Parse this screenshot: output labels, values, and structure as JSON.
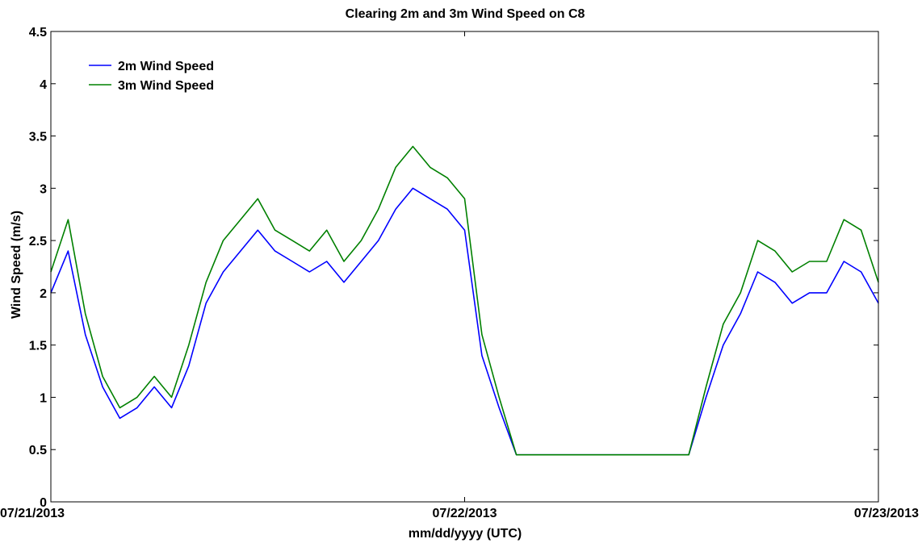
{
  "chart_data": {
    "type": "line",
    "title": "Clearing 2m and 3m Wind Speed on C8",
    "xlabel": "mm/dd/yyyy (UTC)",
    "ylabel": "Wind Speed (m/s)",
    "x_range": [
      "07/21/2013",
      "07/23/2013"
    ],
    "ylim": [
      0,
      4.5
    ],
    "x_ticks": [
      "07/21/2013",
      "07/22/2013",
      "07/23/2013"
    ],
    "y_ticks": [
      "0",
      "0.5",
      "1",
      "1.5",
      "2",
      "2.5",
      "3",
      "3.5",
      "4",
      "4.5"
    ],
    "y_tick_values": [
      0,
      0.5,
      1,
      1.5,
      2,
      2.5,
      3,
      3.5,
      4,
      4.5
    ],
    "grid": false,
    "legend_position": "top-left",
    "series": [
      {
        "name": "2m Wind Speed",
        "color": "#0000ff",
        "x": [
          "07/21/2013 00:00",
          "07/21/2013 01:00",
          "07/21/2013 02:00",
          "07/21/2013 03:00",
          "07/21/2013 04:00",
          "07/21/2013 05:00",
          "07/21/2013 06:00",
          "07/21/2013 07:00",
          "07/21/2013 08:00",
          "07/21/2013 09:00",
          "07/21/2013 10:00",
          "07/21/2013 11:00",
          "07/21/2013 12:00",
          "07/21/2013 13:00",
          "07/21/2013 14:00",
          "07/21/2013 15:00",
          "07/21/2013 16:00",
          "07/21/2013 17:00",
          "07/21/2013 18:00",
          "07/21/2013 19:00",
          "07/21/2013 20:00",
          "07/21/2013 21:00",
          "07/21/2013 22:00",
          "07/21/2013 23:00",
          "07/22/2013 00:00",
          "07/22/2013 01:00",
          "07/22/2013 02:00",
          "07/22/2013 03:00",
          "07/22/2013 04:00",
          "07/22/2013 05:00",
          "07/22/2013 06:00",
          "07/22/2013 07:00",
          "07/22/2013 08:00",
          "07/22/2013 09:00",
          "07/22/2013 10:00",
          "07/22/2013 11:00",
          "07/22/2013 12:00",
          "07/22/2013 13:00",
          "07/22/2013 14:00",
          "07/22/2013 15:00",
          "07/22/2013 16:00",
          "07/22/2013 17:00",
          "07/22/2013 18:00",
          "07/22/2013 19:00",
          "07/22/2013 20:00",
          "07/22/2013 21:00",
          "07/22/2013 22:00",
          "07/22/2013 23:00",
          "07/23/2013 00:00"
        ],
        "values": [
          2.0,
          2.4,
          1.6,
          1.1,
          0.8,
          0.9,
          1.1,
          0.9,
          1.3,
          1.9,
          2.2,
          2.4,
          2.6,
          2.4,
          2.3,
          2.2,
          2.3,
          2.1,
          2.3,
          2.5,
          2.8,
          3.0,
          2.9,
          2.8,
          2.6,
          1.4,
          0.9,
          0.45,
          0.45,
          0.45,
          0.45,
          0.45,
          0.45,
          0.45,
          0.45,
          0.45,
          0.45,
          0.45,
          1.0,
          1.5,
          1.8,
          2.2,
          2.1,
          1.9,
          2.0,
          2.0,
          2.3,
          2.2,
          1.9
        ]
      },
      {
        "name": "3m Wind Speed",
        "color": "#008000",
        "x": [
          "07/21/2013 00:00",
          "07/21/2013 01:00",
          "07/21/2013 02:00",
          "07/21/2013 03:00",
          "07/21/2013 04:00",
          "07/21/2013 05:00",
          "07/21/2013 06:00",
          "07/21/2013 07:00",
          "07/21/2013 08:00",
          "07/21/2013 09:00",
          "07/21/2013 10:00",
          "07/21/2013 11:00",
          "07/21/2013 12:00",
          "07/21/2013 13:00",
          "07/21/2013 14:00",
          "07/21/2013 15:00",
          "07/21/2013 16:00",
          "07/21/2013 17:00",
          "07/21/2013 18:00",
          "07/21/2013 19:00",
          "07/21/2013 20:00",
          "07/21/2013 21:00",
          "07/21/2013 22:00",
          "07/21/2013 23:00",
          "07/22/2013 00:00",
          "07/22/2013 01:00",
          "07/22/2013 02:00",
          "07/22/2013 03:00",
          "07/22/2013 04:00",
          "07/22/2013 05:00",
          "07/22/2013 06:00",
          "07/22/2013 07:00",
          "07/22/2013 08:00",
          "07/22/2013 09:00",
          "07/22/2013 10:00",
          "07/22/2013 11:00",
          "07/22/2013 12:00",
          "07/22/2013 13:00",
          "07/22/2013 14:00",
          "07/22/2013 15:00",
          "07/22/2013 16:00",
          "07/22/2013 17:00",
          "07/22/2013 18:00",
          "07/22/2013 19:00",
          "07/22/2013 20:00",
          "07/22/2013 21:00",
          "07/22/2013 22:00",
          "07/22/2013 23:00",
          "07/23/2013 00:00"
        ],
        "values": [
          2.2,
          2.7,
          1.8,
          1.2,
          0.9,
          1.0,
          1.2,
          1.0,
          1.5,
          2.1,
          2.5,
          2.7,
          2.9,
          2.6,
          2.5,
          2.4,
          2.6,
          2.3,
          2.5,
          2.8,
          3.2,
          3.4,
          3.2,
          3.1,
          2.9,
          1.6,
          1.0,
          0.45,
          0.45,
          0.45,
          0.45,
          0.45,
          0.45,
          0.45,
          0.45,
          0.45,
          0.45,
          0.45,
          1.1,
          1.7,
          2.0,
          2.5,
          2.4,
          2.2,
          2.3,
          2.3,
          2.7,
          2.6,
          2.1
        ]
      }
    ]
  }
}
